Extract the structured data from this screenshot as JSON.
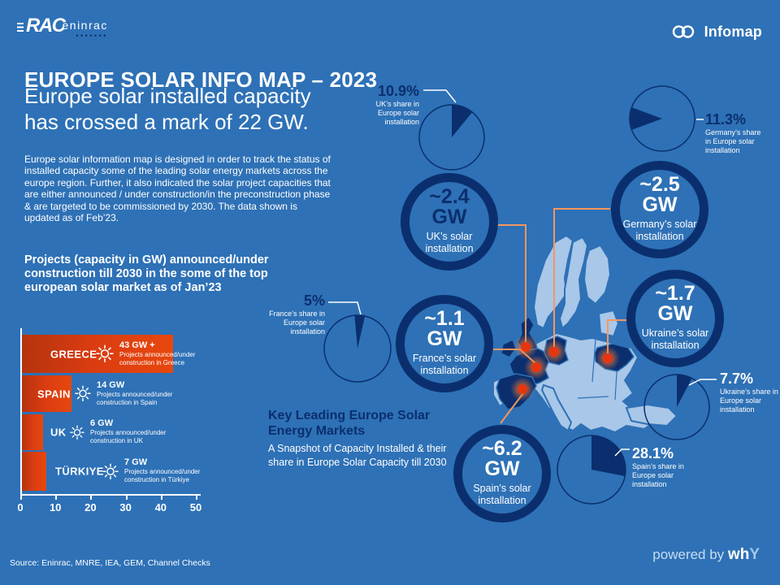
{
  "brand": {
    "rac": "RAC",
    "eninrac": "eninrac",
    "dots": "•••••••",
    "infomap": "Infomap"
  },
  "header": {
    "title": "EUROPE SOLAR INFO MAP – 2023",
    "subtitle_lines": [
      "Europe solar installed capacity",
      "has crossed a mark of 22 GW."
    ],
    "description": "Europe solar information map is designed in order to track the status of installed capacity some of the leading solar energy markets across the europe region. Further, it also indicated the solar project capacities that are either announced / under construction/in the preconstruction phase & are targeted to be commissioned by 2030. The data shown is updated as of Feb’23."
  },
  "projects_section": {
    "heading": "Projects (capacity in GW) announced/under construction till 2030 in the some of the top european solar market as of Jan’23"
  },
  "key_markets_note": {
    "heading": "Key Leading Europe Solar Energy Markets",
    "body": "A Snapshot of Capacity Installed & their share in Europe Solar Capacity till 2030"
  },
  "markets": [
    {
      "id": "uk",
      "value": "~2.4",
      "unit": "GW",
      "label": "UK’s solar installation",
      "share": "10.9%",
      "share_value": 10.9,
      "share_label": "UK’s share in Europe solar installation"
    },
    {
      "id": "germany",
      "value": "~2.5",
      "unit": "GW",
      "label": "Germany’s solar installation",
      "share": "11.3%",
      "share_value": 11.3,
      "share_label": "Germany’s share in Europe solar installation"
    },
    {
      "id": "france",
      "value": "~1.1",
      "unit": "GW",
      "label": "France’s solar installation",
      "share": "5%",
      "share_value": 5.0,
      "share_label": "France’s share in Europe solar installation"
    },
    {
      "id": "ukraine",
      "value": "~1.7",
      "unit": "GW",
      "label": "Ukraine’s solar installation",
      "share": "7.7%",
      "share_value": 7.7,
      "share_label": "Ukraine’s share in Europe solar installation"
    },
    {
      "id": "spain",
      "value": "~6.2",
      "unit": "GW",
      "label": "Spain’s solar installation",
      "share": "28.1%",
      "share_value": 28.1,
      "share_label": "Spain’s share in Europe solar installation"
    }
  ],
  "chart_data": [
    {
      "type": "bar",
      "title": "Projects (capacity in GW) announced/under construction till 2030 in the some of the top european solar market as of Jan’23",
      "categories": [
        "GREECE",
        "SPAIN",
        "UK",
        "TÜRKIYE"
      ],
      "values": [
        43,
        14,
        6,
        7
      ],
      "value_labels": [
        "43 GW +",
        "14 GW",
        "6 GW",
        "7 GW"
      ],
      "descriptions": [
        "Projects announced/under construction in Greece",
        "Projects announced/under construction in Spain",
        "Projects announced/under construction in UK",
        "Projects announced/under construction in Türkiye"
      ],
      "xlabel": "",
      "ylabel": "",
      "xlim": [
        0,
        50
      ],
      "x_ticks": [
        0,
        10,
        20,
        30,
        40,
        50
      ],
      "grid": false,
      "bar_color": "#d93c10"
    },
    {
      "type": "pie",
      "title": "Share in Europe solar installation (%)",
      "unit": "%",
      "slices": [
        {
          "label": "UK",
          "value": 10.9
        },
        {
          "label": "Germany",
          "value": 11.3
        },
        {
          "label": "France",
          "value": 5.0
        },
        {
          "label": "Ukraine",
          "value": 7.7
        },
        {
          "label": "Spain",
          "value": 28.1
        }
      ]
    }
  ],
  "footer": {
    "source": "Source: Eninrac, MNRE, IEA, GEM, Channel Checks",
    "powered_by": "powered by",
    "powered_brand_bold": "wh",
    "powered_brand_light": "Y"
  },
  "colors": {
    "background": "#2e71b6",
    "navy": "#0b2f6e",
    "map_light": "#a9c7e8",
    "bar_red": "#d93c10",
    "connector_orange": "#f5975f",
    "marker_red": "#e8350f"
  }
}
